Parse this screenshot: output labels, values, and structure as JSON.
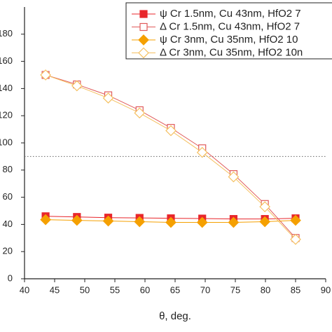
{
  "chart_data": {
    "type": "line",
    "x_label": "θ, deg.",
    "xlim": [
      40,
      90
    ],
    "xticks": [
      40,
      45,
      50,
      55,
      60,
      65,
      70,
      75,
      80,
      85,
      90
    ],
    "ylim": [
      0,
      200
    ],
    "yticks": [
      0,
      20,
      40,
      60,
      80,
      100,
      120,
      140,
      160,
      180
    ],
    "hline": 90,
    "series": [
      {
        "name": "ψ Cr 1.5nm, Cu 43nm, HfO2 7",
        "color": "#e8262b",
        "marker": "square",
        "filled": true,
        "x": [
          43.5,
          48.7,
          53.9,
          59.1,
          64.3,
          69.5,
          74.7,
          79.9,
          85
        ],
        "values": [
          46,
          45.5,
          45,
          44.8,
          44.5,
          44.3,
          44,
          44,
          44.5
        ]
      },
      {
        "name": "Δ Cr 1.5nm, Cu 43nm, HfO2 7",
        "color": "#e05a5a",
        "marker": "square",
        "filled": false,
        "x": [
          43.5,
          48.7,
          53.9,
          59.1,
          64.3,
          69.5,
          74.7,
          79.9,
          85
        ],
        "values": [
          150,
          143,
          135,
          124,
          111,
          96,
          77,
          55,
          30
        ]
      },
      {
        "name": "ψ Cr 3nm, Cu 35nm, HfO2 10",
        "color": "#f5a000",
        "marker": "diamond",
        "filled": true,
        "x": [
          43.5,
          48.7,
          53.9,
          59.1,
          64.3,
          69.5,
          74.7,
          79.9,
          85
        ],
        "values": [
          43.5,
          43,
          42.5,
          42,
          41.5,
          41.5,
          41.5,
          42,
          43
        ]
      },
      {
        "name": "Δ Cr 3nm, Cu 35nm, HfO2 10n",
        "color": "#f5c060",
        "marker": "diamond",
        "filled": false,
        "x": [
          43.5,
          48.7,
          53.9,
          59.1,
          64.3,
          69.5,
          74.7,
          79.9,
          85
        ],
        "values": [
          150,
          142,
          133,
          122,
          109,
          93,
          75,
          53,
          29
        ]
      }
    ]
  }
}
